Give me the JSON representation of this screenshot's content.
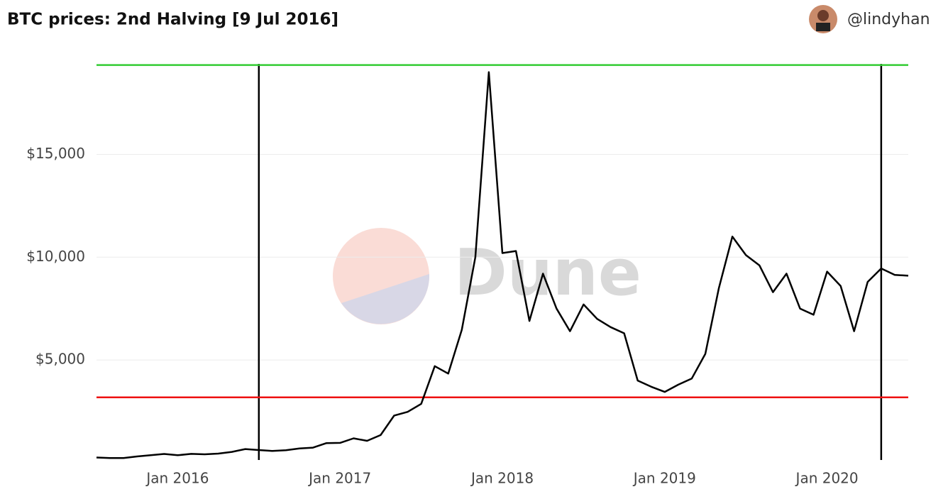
{
  "header": {
    "title": "BTC prices: 2nd Halving [9 Jul 2016]",
    "user": "@lindyhan"
  },
  "chart_data": {
    "type": "line",
    "watermark": "Dune",
    "x": [
      "2015-07",
      "2015-08",
      "2015-09",
      "2015-10",
      "2015-11",
      "2015-12",
      "2016-01",
      "2016-02",
      "2016-03",
      "2016-04",
      "2016-05",
      "2016-06",
      "2016-07",
      "2016-08",
      "2016-09",
      "2016-10",
      "2016-11",
      "2016-12",
      "2017-01",
      "2017-02",
      "2017-03",
      "2017-04",
      "2017-05",
      "2017-06",
      "2017-07",
      "2017-08",
      "2017-09",
      "2017-10",
      "2017-11",
      "2017-12",
      "2018-01",
      "2018-02",
      "2018-03",
      "2018-04",
      "2018-05",
      "2018-06",
      "2018-07",
      "2018-08",
      "2018-09",
      "2018-10",
      "2018-11",
      "2018-12",
      "2019-01",
      "2019-02",
      "2019-03",
      "2019-04",
      "2019-05",
      "2019-06",
      "2019-07",
      "2019-08",
      "2019-09",
      "2019-10",
      "2019-11",
      "2019-12",
      "2020-01",
      "2020-02",
      "2020-03",
      "2020-04",
      "2020-05",
      "2020-06",
      "2020-07"
    ],
    "series": [
      {
        "name": "BTC price",
        "color": "#000000",
        "values": [
          260,
          230,
          236,
          310,
          370,
          430,
          370,
          435,
          415,
          450,
          530,
          670,
          620,
          575,
          610,
          700,
          740,
          960,
          970,
          1190,
          1070,
          1350,
          2300,
          2480,
          2870,
          4700,
          4340,
          6470,
          10000,
          19000,
          10200,
          10300,
          6900,
          9200,
          7500,
          6400,
          7700,
          7000,
          6600,
          6300,
          4000,
          3700,
          3450,
          3800,
          4100,
          5300,
          8500,
          11000,
          10100,
          9600,
          8300,
          9200,
          7500,
          7200,
          9300,
          8600,
          6400,
          8800,
          9450,
          9140,
          9100
        ]
      }
    ],
    "xlim": [
      "2015-07",
      "2020-07"
    ],
    "xticks": [
      {
        "value": "2016-01",
        "label": "Jan 2016"
      },
      {
        "value": "2017-01",
        "label": "Jan 2017"
      },
      {
        "value": "2018-01",
        "label": "Jan 2018"
      },
      {
        "value": "2019-01",
        "label": "Jan 2019"
      },
      {
        "value": "2020-01",
        "label": "Jan 2020"
      }
    ],
    "ylim": [
      0,
      19400
    ],
    "yticks": [
      {
        "value": 5000,
        "label": "$5,000"
      },
      {
        "value": 10000,
        "label": "$10,000"
      },
      {
        "value": 15000,
        "label": "$15,000"
      }
    ],
    "grid": true,
    "hlines": [
      {
        "value": 19345,
        "color": "#33cc33"
      },
      {
        "value": 3183,
        "color": "#ee1111"
      }
    ],
    "vlines": [
      {
        "value": "2016-07",
        "color": "#000000"
      },
      {
        "value": "2020-05",
        "color": "#000000"
      }
    ]
  }
}
